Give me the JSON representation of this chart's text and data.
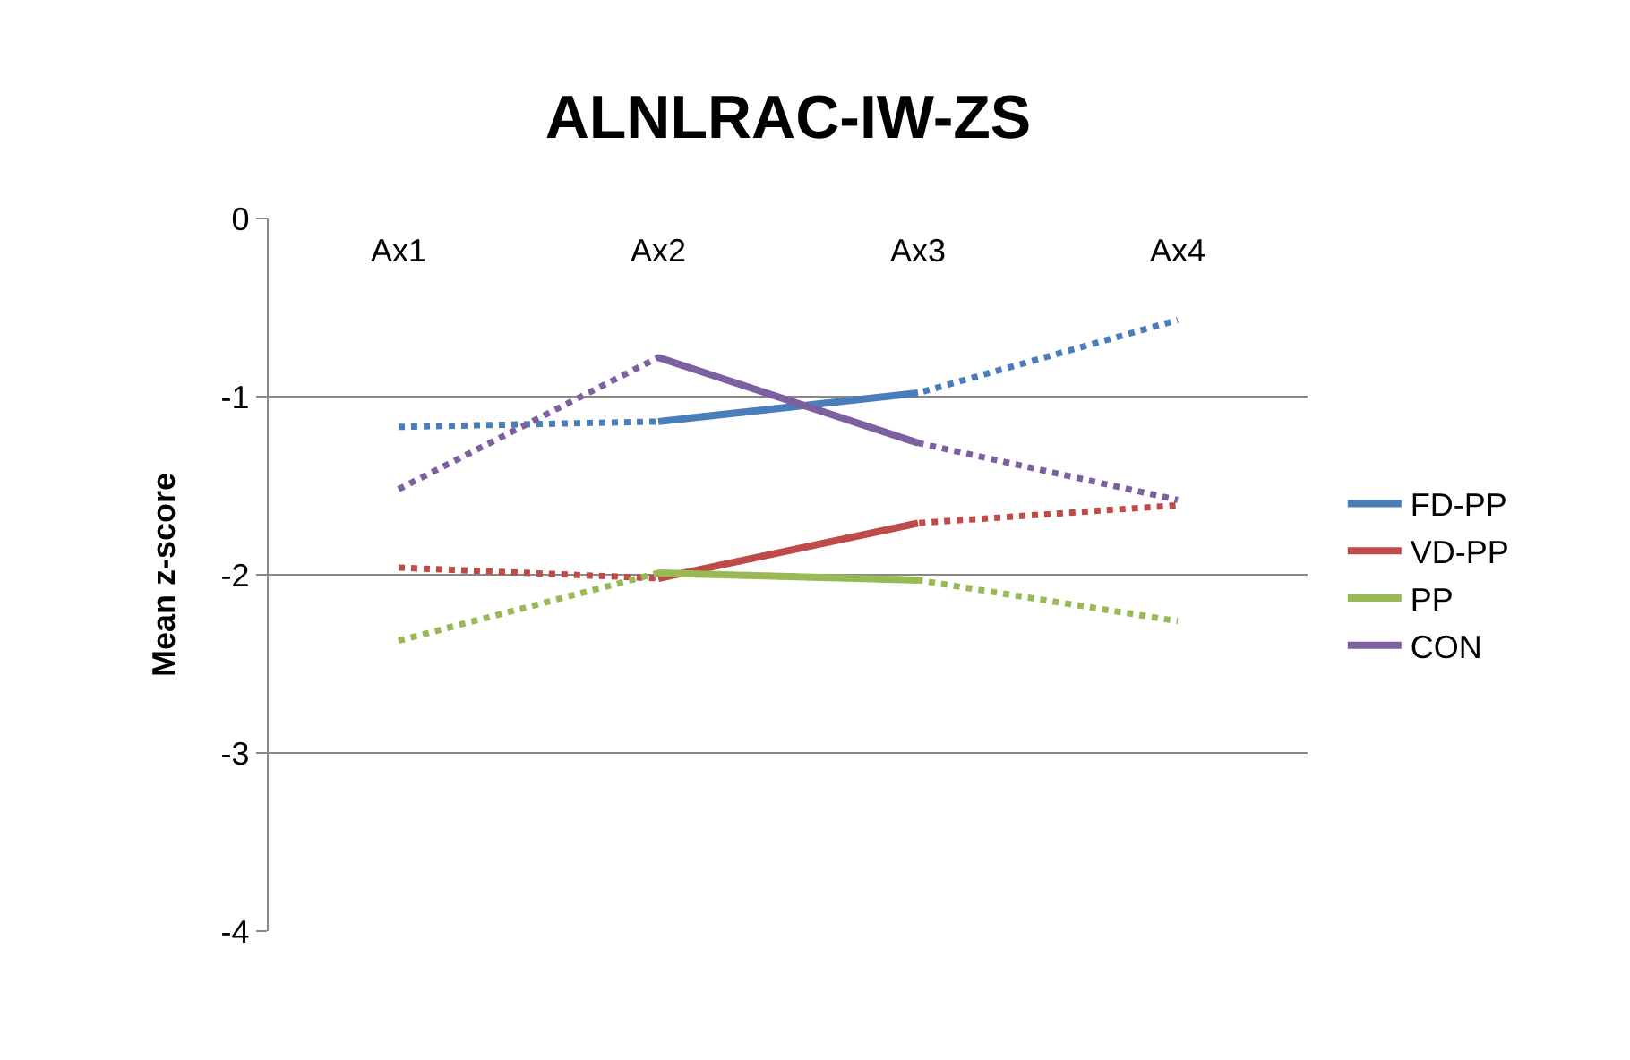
{
  "chart_data": {
    "type": "line",
    "title": "ALNLRAC-IW-ZS",
    "ylabel": "Mean z-score",
    "categories": [
      "Ax1",
      "Ax2",
      "Ax3",
      "Ax4"
    ],
    "ylim": [
      -4,
      0
    ],
    "yticks": [
      -4,
      -3,
      -2,
      -1,
      0
    ],
    "grid": "y",
    "legend": "right",
    "marker": "none",
    "series": [
      {
        "color": "#4a7ebb",
        "line_style": "dotted",
        "values": [
          -1.17,
          -1.14,
          -0.98,
          -0.57
        ]
      },
      {
        "color": "#be4b48",
        "line_style": "dotted",
        "values": [
          -1.96,
          -2.02,
          -1.71,
          -1.61
        ]
      },
      {
        "color": "#98b954",
        "line_style": "dotted",
        "values": [
          -2.37,
          -1.99,
          -2.03,
          -2.26
        ]
      },
      {
        "color": "#7d60a0",
        "line_style": "dotted",
        "values": [
          -1.52,
          -0.78,
          -1.26,
          -1.58
        ]
      },
      {
        "name": "FD-PP",
        "color": "#4a7ebb",
        "line_style": "solid",
        "values": [
          null,
          -1.14,
          -0.98,
          null
        ]
      },
      {
        "name": "VD-PP",
        "color": "#be4b48",
        "line_style": "solid",
        "values": [
          null,
          -2.02,
          -1.71,
          null
        ]
      },
      {
        "name": "PP",
        "color": "#98b954",
        "line_style": "solid",
        "values": [
          null,
          -1.99,
          -2.03,
          null
        ]
      },
      {
        "name": "CON",
        "color": "#7d60a0",
        "line_style": "solid",
        "values": [
          null,
          -0.78,
          -1.26,
          null
        ]
      }
    ]
  }
}
